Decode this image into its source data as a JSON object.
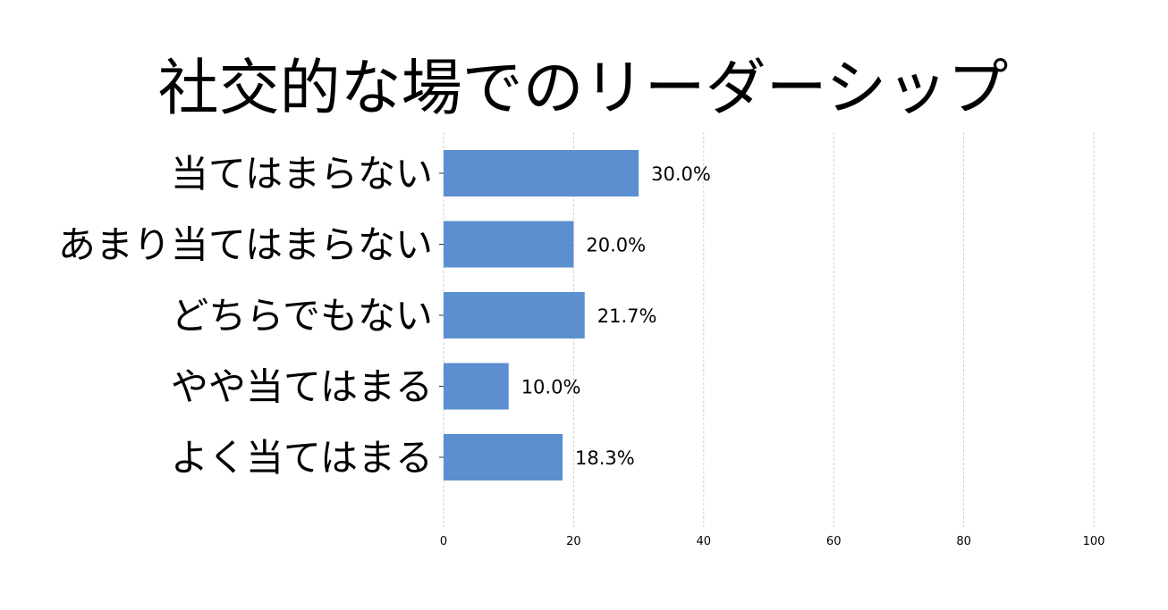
{
  "chart_data": {
    "type": "bar",
    "orientation": "horizontal",
    "title": "社交的な場でのリーダーシップ",
    "categories": [
      "当てはまらない",
      "あまり当てはまらない",
      "どちらでもない",
      "やや当てはまる",
      "よく当てはまる"
    ],
    "values": [
      30.0,
      20.0,
      21.7,
      10.0,
      18.3
    ],
    "data_labels": [
      "30.0%",
      "20.0%",
      "21.7%",
      "10.0%",
      "18.3%"
    ],
    "xlim": [
      0,
      100
    ],
    "x_ticks": [
      0,
      20,
      40,
      60,
      80,
      100
    ],
    "x_tick_labels": [
      "0",
      "20",
      "40",
      "60",
      "80",
      "100"
    ],
    "xlabel": "",
    "ylabel": "",
    "grid": "vertical dashed",
    "bar_color": "#5b8fd0",
    "grid_color": "#c8c8c8"
  }
}
